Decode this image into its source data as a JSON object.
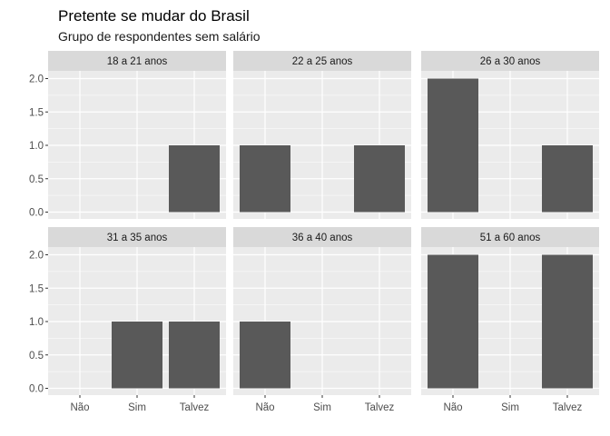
{
  "chart_data": {
    "type": "bar",
    "title": "Pretente se mudar do Brasil",
    "subtitle": "Grupo de respondentes sem salário",
    "xlabel": "",
    "ylabel": "",
    "categories": [
      "Não",
      "Sim",
      "Talvez"
    ],
    "y_ticks": [
      "0.0",
      "0.5",
      "1.0",
      "1.5",
      "2.0"
    ],
    "ylim": [
      0,
      2
    ],
    "grid": true,
    "bar_color": "#595959",
    "panel_background": "#ebebeb",
    "strip_background": "#d9d9d9",
    "facets": [
      {
        "label": "18 a 21 anos",
        "values": [
          0,
          0,
          1
        ]
      },
      {
        "label": "22 a 25 anos",
        "values": [
          1,
          0,
          1
        ]
      },
      {
        "label": "26 a 30 anos",
        "values": [
          2,
          0,
          1
        ]
      },
      {
        "label": "31 a 35 anos",
        "values": [
          0,
          1,
          1
        ]
      },
      {
        "label": "36 a 40 anos",
        "values": [
          1,
          0,
          0
        ]
      },
      {
        "label": "51 a 60 anos",
        "values": [
          2,
          0,
          2
        ]
      }
    ]
  }
}
